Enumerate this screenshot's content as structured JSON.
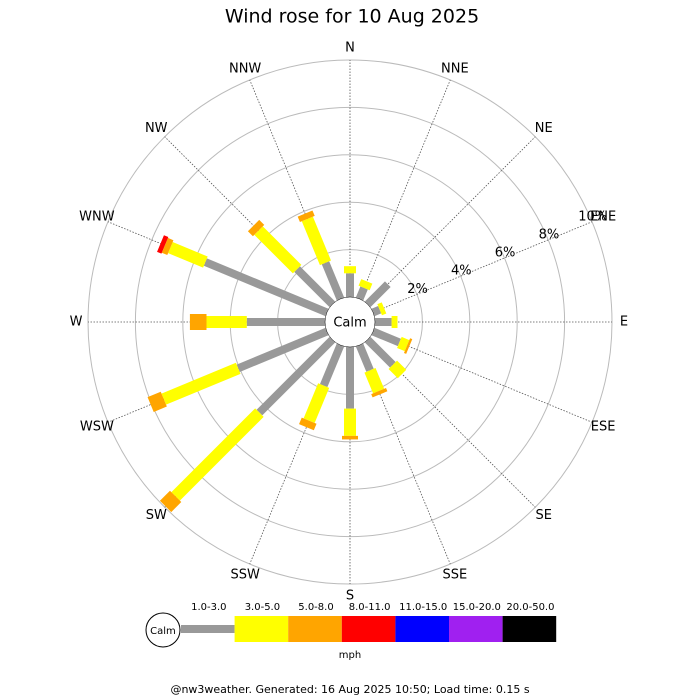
{
  "chart_data": {
    "type": "windrose",
    "title": "Wind rose for 10 Aug 2025",
    "directions": [
      "N",
      "NNE",
      "NE",
      "ENE",
      "E",
      "ESE",
      "SE",
      "SSE",
      "S",
      "SSW",
      "SW",
      "WSW",
      "W",
      "WNW",
      "NW",
      "NNW"
    ],
    "rlim": [
      0,
      10
    ],
    "rticks": [
      {
        "value": 2,
        "label": "2%"
      },
      {
        "value": 4,
        "label": "4%"
      },
      {
        "value": 6,
        "label": "6%"
      },
      {
        "value": 8,
        "label": "8%"
      },
      {
        "value": 10,
        "label": "10%"
      }
    ],
    "calm_label": "Calm",
    "series": [
      {
        "name": "1.0-3.0",
        "color": "#999999",
        "values": [
          1.0,
          0.5,
          1.2,
          0.3,
          0.7,
          1.2,
          1.5,
          1.15,
          2.6,
          1.85,
          4.35,
          4.05,
          3.3,
          5.55,
          2.1,
          1.65
        ]
      },
      {
        "name": "3.0-5.0",
        "color": "#ffff00",
        "values": [
          0.3,
          0.3,
          0,
          0.2,
          0.25,
          0.35,
          0.55,
          0.95,
          1.15,
          1.6,
          5.0,
          3.4,
          1.7,
          1.6,
          2.3,
          2.0
        ]
      },
      {
        "name": "5.0-8.0",
        "color": "#ffa500",
        "values": [
          0,
          0,
          0,
          0,
          0,
          0.1,
          0,
          0.15,
          0.15,
          0.3,
          0.6,
          0.6,
          0.7,
          0.25,
          0.3,
          0.25
        ]
      },
      {
        "name": "8.0-11.0",
        "color": "#ff0000",
        "values": [
          0,
          0,
          0,
          0,
          0,
          0,
          0,
          0,
          0,
          0,
          0,
          0,
          0,
          0.2,
          0,
          0
        ]
      },
      {
        "name": "11.0-15.0",
        "color": "#0000ff",
        "values": [
          0,
          0,
          0,
          0,
          0,
          0,
          0,
          0,
          0,
          0,
          0,
          0,
          0,
          0,
          0,
          0
        ]
      },
      {
        "name": "15.0-20.0",
        "color": "#a020f0",
        "values": [
          0,
          0,
          0,
          0,
          0,
          0,
          0,
          0,
          0,
          0,
          0,
          0,
          0,
          0,
          0,
          0
        ]
      },
      {
        "name": "20.0-50.0",
        "color": "#000000",
        "values": [
          0,
          0,
          0,
          0,
          0,
          0,
          0,
          0,
          0,
          0,
          0,
          0,
          0,
          0,
          0,
          0
        ]
      }
    ],
    "unit": "mph",
    "footer": "@nw3weather. Generated: 16 Aug 2025 10:50; Load time: 0.15 s"
  }
}
